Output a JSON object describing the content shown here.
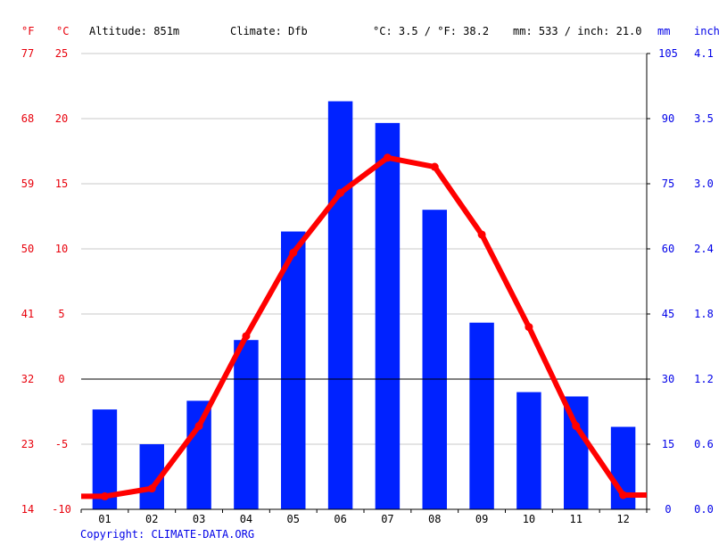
{
  "header": {
    "unit_f": "°F",
    "unit_c": "°C",
    "altitude": "Altitude: 851m",
    "climate": "Climate: Dfb",
    "temp_avg": "°C: 3.5 / °F: 38.2",
    "precip_total": "mm: 533 / inch: 21.0",
    "unit_mm": "mm",
    "unit_inch": "inch"
  },
  "copyright": "Copyright: CLIMATE-DATA.ORG",
  "colors": {
    "temperature": "#ff0000",
    "precipitation": "#0022ff",
    "temp_axis": "#e8000b",
    "precip_axis": "#0000e8",
    "grid": "#c8c8c8",
    "zero_line": "#000000"
  },
  "chart_data": {
    "type": "bar",
    "categories": [
      "01",
      "02",
      "03",
      "04",
      "05",
      "06",
      "07",
      "08",
      "09",
      "10",
      "11",
      "12"
    ],
    "series": [
      {
        "type": "bar",
        "axis": "right",
        "values": [
          23,
          15,
          25,
          39,
          64,
          94,
          89,
          69,
          43,
          27,
          26,
          19
        ]
      },
      {
        "type": "line",
        "axis": "left",
        "values": [
          -9.0,
          -8.4,
          -3.6,
          3.3,
          9.7,
          14.3,
          17.0,
          16.3,
          11.1,
          4.0,
          -3.6,
          -8.9
        ]
      }
    ],
    "y_left": {
      "label": "°C",
      "ylim": [
        -10,
        25
      ],
      "ticks": [
        -10,
        -5,
        0,
        5,
        10,
        15,
        20,
        25
      ]
    },
    "y_left_f": {
      "label": "°F",
      "ticks": [
        14,
        23,
        32,
        41,
        50,
        59,
        68,
        77
      ]
    },
    "y_right": {
      "label": "mm",
      "ylim": [
        0,
        105
      ],
      "ticks": [
        0,
        15,
        30,
        45,
        60,
        75,
        90,
        105
      ]
    },
    "y_right_inch": {
      "label": "inch",
      "ticks": [
        "0.0",
        "0.6",
        "1.2",
        "1.8",
        "2.4",
        "3.0",
        "3.5",
        "4.1"
      ]
    },
    "grid": true
  }
}
